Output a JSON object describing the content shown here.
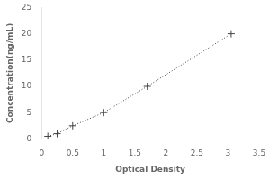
{
  "chart_data": {
    "type": "line",
    "x": [
      0.1,
      0.25,
      0.5,
      1.0,
      1.7,
      3.05
    ],
    "values": [
      0.5,
      1.0,
      2.5,
      5.0,
      10.0,
      20.0
    ],
    "xlabel": "Optical Density",
    "ylabel": "Concentration(ng/mL)",
    "xlim": [
      0,
      3.5
    ],
    "ylim": [
      0,
      25
    ],
    "xticks": [
      0,
      0.5,
      1,
      1.5,
      2,
      2.5,
      3,
      3.5
    ],
    "yticks": [
      0,
      5,
      10,
      15,
      20,
      25
    ],
    "color": "#444444",
    "marker": "plus",
    "line_style": "dotted",
    "grid": false
  }
}
